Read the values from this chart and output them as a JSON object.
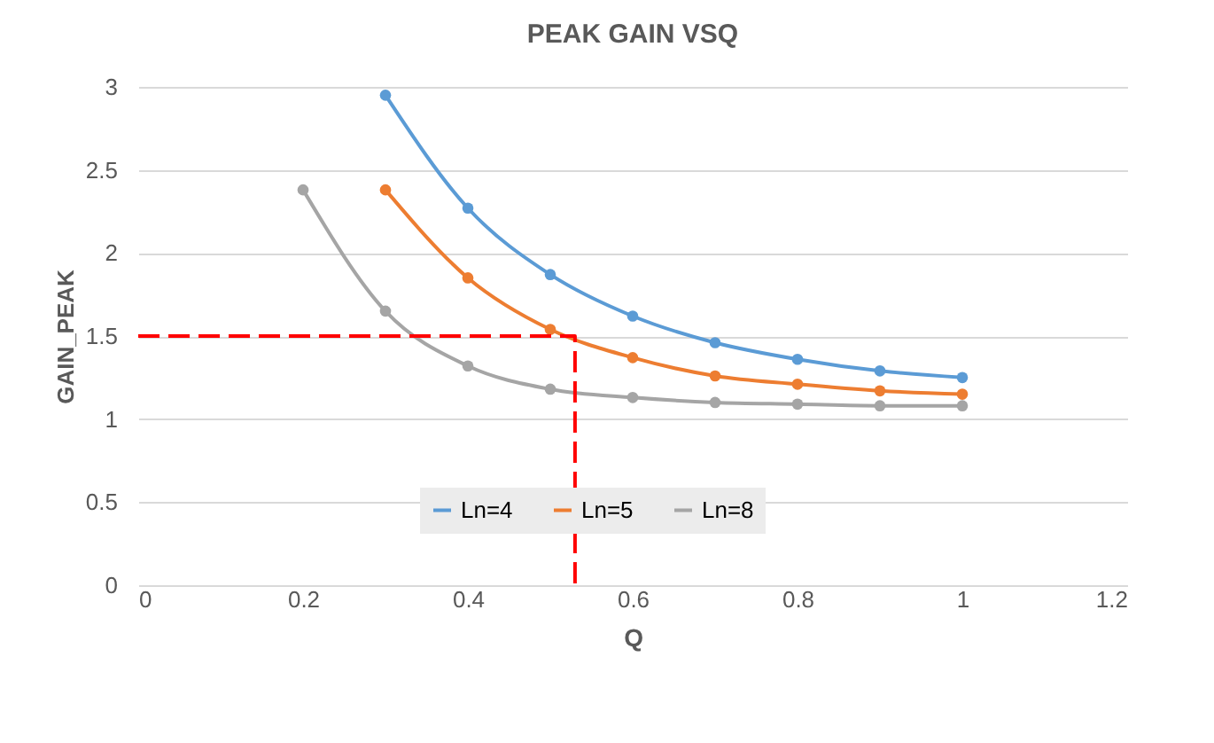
{
  "chart_data": {
    "type": "line",
    "title": "PEAK GAIN VSQ",
    "xlabel": "Q",
    "ylabel": "GAIN_PEAK",
    "xlim": [
      0,
      1.2
    ],
    "ylim": [
      0,
      3
    ],
    "xticks": [
      0,
      0.2,
      0.4,
      0.6,
      0.8,
      1,
      1.2
    ],
    "yticks": [
      0,
      0.5,
      1,
      1.5,
      2,
      2.5,
      3
    ],
    "grid": "y",
    "legend": "bottom",
    "marker": "circle",
    "series": [
      {
        "name": "Ln=4",
        "color": "#5b9bd5",
        "x": [
          0.3,
          0.4,
          0.5,
          0.6,
          0.7,
          0.8,
          0.9,
          1.0
        ],
        "values": [
          2.95,
          2.27,
          1.87,
          1.62,
          1.46,
          1.36,
          1.29,
          1.25
        ]
      },
      {
        "name": "Ln=5",
        "color": "#ed7d31",
        "x": [
          0.3,
          0.4,
          0.5,
          0.6,
          0.7,
          0.8,
          0.9,
          1.0
        ],
        "values": [
          2.38,
          1.85,
          1.54,
          1.37,
          1.26,
          1.21,
          1.17,
          1.15
        ]
      },
      {
        "name": "Ln=8",
        "color": "#a5a5a5",
        "x": [
          0.2,
          0.3,
          0.4,
          0.5,
          0.6,
          0.7,
          0.8,
          0.9,
          1.0
        ],
        "values": [
          2.38,
          1.65,
          1.32,
          1.18,
          1.13,
          1.1,
          1.09,
          1.08,
          1.08
        ]
      },
      {
        "color": "#ff0000",
        "line_style": "dashed",
        "marker": "none",
        "x": [
          0,
          0.53,
          0.53
        ],
        "values": [
          1.5,
          1.5,
          0
        ]
      }
    ]
  }
}
